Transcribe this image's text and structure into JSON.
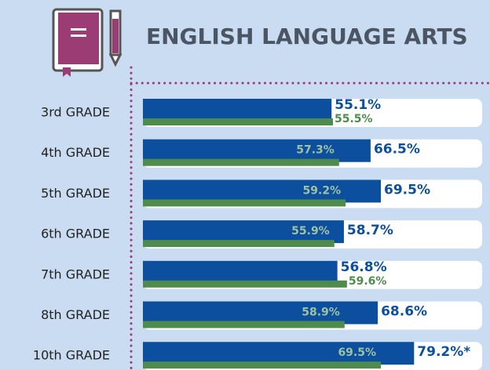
{
  "chart_data": {
    "type": "bar",
    "orientation": "horizontal",
    "title": "ENGLISH LANGUAGE ARTS",
    "categories": [
      "3rd GRADE",
      "4th GRADE",
      "5th GRADE",
      "6th GRADE",
      "7th GRADE",
      "8th GRADE",
      "10th GRADE"
    ],
    "xlim": [
      0,
      100
    ],
    "series": [
      {
        "color": "#0b4f9e",
        "values": [
          55.1,
          66.5,
          69.5,
          58.7,
          56.8,
          68.6,
          79.2
        ],
        "value_labels": [
          "55.1%",
          "66.5%",
          "69.5%",
          "58.7%",
          "56.8%",
          "68.6%",
          "79.2%*"
        ]
      },
      {
        "color": "#4e8b4c",
        "values": [
          55.5,
          57.3,
          59.2,
          55.9,
          59.6,
          58.9,
          69.5
        ],
        "value_labels": [
          "55.5%",
          "57.3%",
          "59.2%",
          "55.9%",
          "59.6%",
          "58.9%",
          "69.5%"
        ]
      }
    ]
  }
}
